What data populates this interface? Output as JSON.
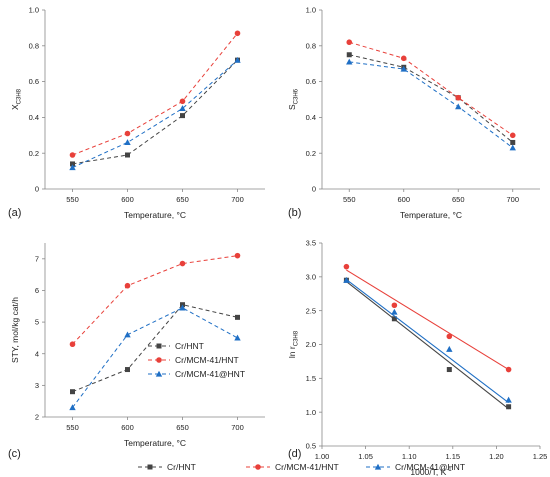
{
  "colors": {
    "gray": "#444444",
    "red": "#e8403a",
    "blue": "#1f6fc5",
    "axis": "#888888"
  },
  "legend": [
    {
      "label": "Cr/HNT",
      "color": "#444444",
      "marker": "square"
    },
    {
      "label": "Cr/MCM-41/HNT",
      "color": "#e8403a",
      "marker": "circle"
    },
    {
      "label": "Cr/MCM-41@HNT",
      "color": "#1f6fc5",
      "marker": "triangle"
    }
  ],
  "chart_data": [
    {
      "panel_label": "(a)",
      "type": "line",
      "xlabel": "Temperature, °C",
      "ylabel": "X",
      "ylabel_sub": "C3H8",
      "xlim": [
        525,
        725
      ],
      "ylim": [
        0,
        1.0
      ],
      "xticks": [
        550,
        600,
        650,
        700
      ],
      "yticks": [
        0,
        0.2,
        0.4,
        0.6,
        0.8,
        1.0
      ],
      "ytick_labels": [
        "0",
        "0.2",
        "0.4",
        "0.6",
        "0.8",
        "1.0"
      ],
      "x": [
        550,
        600,
        650,
        700
      ],
      "series": [
        {
          "name": "Cr/HNT",
          "values": [
            0.14,
            0.19,
            0.41,
            0.72
          ],
          "color": "#444444",
          "marker": "square",
          "line": "dash"
        },
        {
          "name": "Cr/MCM-41/HNT",
          "values": [
            0.19,
            0.31,
            0.49,
            0.87
          ],
          "color": "#e8403a",
          "marker": "circle",
          "line": "dash"
        },
        {
          "name": "Cr/MCM-41@HNT",
          "values": [
            0.12,
            0.26,
            0.45,
            0.72
          ],
          "color": "#1f6fc5",
          "marker": "triangle",
          "line": "dash"
        }
      ]
    },
    {
      "panel_label": "(b)",
      "type": "line",
      "xlabel": "Temperature, °C",
      "ylabel": "S",
      "ylabel_sub": "C3H6",
      "xlim": [
        525,
        725
      ],
      "ylim": [
        0,
        1.0
      ],
      "xticks": [
        550,
        600,
        650,
        700
      ],
      "yticks": [
        0,
        0.2,
        0.4,
        0.6,
        0.8,
        1.0
      ],
      "ytick_labels": [
        "0",
        "0.2",
        "0.4",
        "0.6",
        "0.8",
        "1.0"
      ],
      "x": [
        550,
        600,
        650,
        700
      ],
      "series": [
        {
          "name": "Cr/HNT",
          "values": [
            0.75,
            0.68,
            0.51,
            0.26
          ],
          "color": "#444444",
          "marker": "square",
          "line": "dash"
        },
        {
          "name": "Cr/MCM-41/HNT",
          "values": [
            0.82,
            0.73,
            0.51,
            0.3
          ],
          "color": "#e8403a",
          "marker": "circle",
          "line": "dash"
        },
        {
          "name": "Cr/MCM-41@HNT",
          "values": [
            0.71,
            0.67,
            0.46,
            0.23
          ],
          "color": "#1f6fc5",
          "marker": "triangle",
          "line": "dash"
        }
      ]
    },
    {
      "panel_label": "(c)",
      "type": "line",
      "xlabel": "Temperature, °C",
      "ylabel": "STY, mol/kg cat/h",
      "ylabel_sub": "",
      "xlim": [
        525,
        725
      ],
      "ylim": [
        2,
        7.5
      ],
      "xticks": [
        550,
        600,
        650,
        700
      ],
      "yticks": [
        2,
        3,
        4,
        5,
        6,
        7
      ],
      "ytick_labels": [
        "2",
        "3",
        "4",
        "5",
        "6",
        "7"
      ],
      "x": [
        550,
        600,
        650,
        700
      ],
      "inner_legend": true,
      "series": [
        {
          "name": "Cr/HNT",
          "values": [
            2.8,
            3.5,
            5.55,
            5.15
          ],
          "color": "#444444",
          "marker": "square",
          "line": "dash"
        },
        {
          "name": "Cr/MCM-41/HNT",
          "values": [
            4.3,
            6.15,
            6.85,
            7.1
          ],
          "color": "#e8403a",
          "marker": "circle",
          "line": "dash"
        },
        {
          "name": "Cr/MCM-41@HNT",
          "values": [
            2.3,
            4.6,
            5.45,
            4.5
          ],
          "color": "#1f6fc5",
          "marker": "triangle",
          "line": "dash"
        }
      ]
    },
    {
      "panel_label": "(d)",
      "type": "scatter",
      "xlabel": "1000/T, K",
      "xlabel_sup": "-1",
      "ylabel": "ln r",
      "ylabel_sub": "C3H8",
      "xlim": [
        1.0,
        1.25
      ],
      "ylim": [
        0.5,
        3.5
      ],
      "xticks": [
        1.0,
        1.05,
        1.1,
        1.15,
        1.2,
        1.25
      ],
      "xtick_labels": [
        "1.00",
        "1.05",
        "1.10",
        "1.15",
        "1.20",
        "1.25"
      ],
      "yticks": [
        0.5,
        1.0,
        1.5,
        2.0,
        2.5,
        3.0,
        3.5
      ],
      "ytick_labels": [
        "0.5",
        "1.0",
        "1.5",
        "2.0",
        "2.5",
        "3.0",
        "3.5"
      ],
      "x": [
        1.028,
        1.083,
        1.146,
        1.214
      ],
      "series": [
        {
          "name": "Cr/HNT",
          "values": [
            2.95,
            2.38,
            1.63,
            1.08
          ],
          "fit": [
            [
              1.028,
              2.93
            ],
            [
              1.214,
              1.05
            ]
          ],
          "color": "#444444",
          "marker": "square"
        },
        {
          "name": "Cr/MCM-41/HNT",
          "values": [
            3.15,
            2.58,
            2.12,
            1.63
          ],
          "fit": [
            [
              1.028,
              3.1
            ],
            [
              1.214,
              1.63
            ]
          ],
          "color": "#e8403a",
          "marker": "circle"
        },
        {
          "name": "Cr/MCM-41@HNT",
          "values": [
            2.95,
            2.48,
            1.93,
            1.18
          ],
          "fit": [
            [
              1.028,
              2.96
            ],
            [
              1.214,
              1.14
            ]
          ],
          "color": "#1f6fc5",
          "marker": "triangle"
        }
      ]
    }
  ]
}
